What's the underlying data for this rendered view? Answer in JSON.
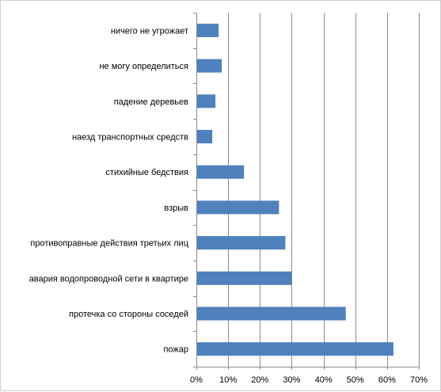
{
  "chart_data": {
    "type": "bar",
    "orientation": "horizontal",
    "categories": [
      "ничего не угрожает",
      "не могу определиться",
      "падение деревьев",
      "наезд транспортных средств",
      "стихийные бедствия",
      "взрыв",
      "противоправные действия третьих лиц",
      "авария водопроводной сети в квартире",
      "протечка со стороны соседей",
      "пожар"
    ],
    "values": [
      7,
      8,
      6,
      5,
      15,
      26,
      28,
      30,
      47,
      62
    ],
    "xlim": [
      0,
      70
    ],
    "xticks": [
      "0%",
      "10%",
      "20%",
      "30%",
      "40%",
      "50%",
      "60%",
      "70%"
    ],
    "grid": true,
    "legend": "none",
    "bar_color": "#4f81bd",
    "grid_color": "#8c8c8c"
  }
}
